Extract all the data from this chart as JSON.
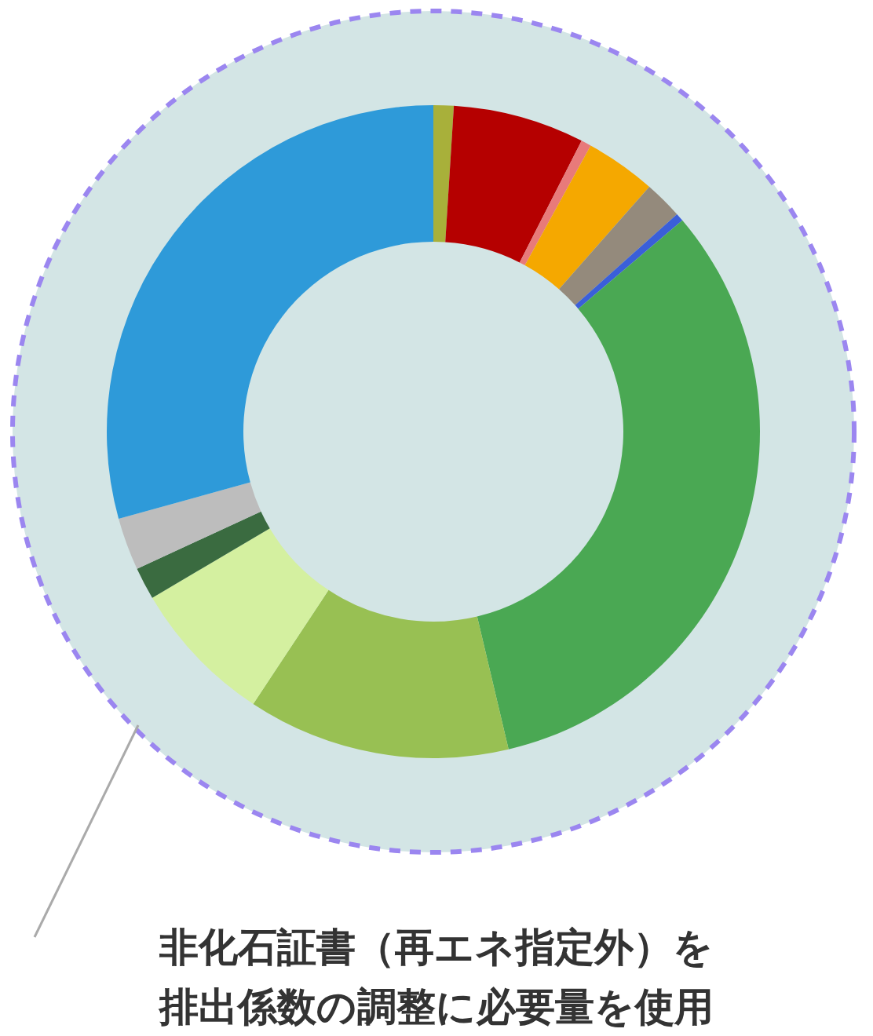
{
  "chart_data": {
    "type": "donut",
    "categories": [
      null,
      null,
      null,
      null,
      null,
      null,
      null,
      null,
      null,
      null,
      null,
      null
    ],
    "values": [
      1,
      6.5,
      0.5,
      3.5,
      1.9,
      0.4,
      32.5,
      13,
      7.2,
      1.6,
      2.6,
      29.3
    ],
    "colors": [
      "#a8b03a",
      "#b50000",
      "#e87a7a",
      "#f5a800",
      "#948a7c",
      "#3a5fd9",
      "#4aa853",
      "#98c053",
      "#d4f0a0",
      "#3a6b40",
      "#bdbdbd",
      "#2e9ad9"
    ],
    "annotations": [
      "非化石証書（再エネ指定外）を",
      "排出係数の調整に必要量を使用"
    ]
  }
}
